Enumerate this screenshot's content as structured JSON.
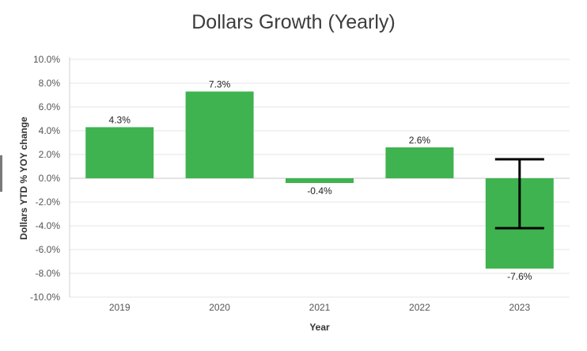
{
  "chart_data": {
    "type": "bar",
    "title": "Dollars Growth (Yearly)",
    "xlabel": "Year",
    "ylabel": "Dollars YTD % YOY change",
    "categories": [
      "2019",
      "2020",
      "2021",
      "2022",
      "2023"
    ],
    "values": [
      4.3,
      7.3,
      -0.4,
      2.6,
      -7.6
    ],
    "data_labels": [
      "4.3%",
      "7.3%",
      "-0.4%",
      "2.6%",
      "-7.6%"
    ],
    "ylim": [
      -10,
      10
    ],
    "yticks": [
      10,
      8,
      6,
      4,
      2,
      0,
      -2,
      -4,
      -6,
      -8,
      -10
    ],
    "ytick_labels": [
      "10.0%",
      "8.0%",
      "6.0%",
      "4.0%",
      "2.0%",
      "0.0%",
      "-2.0%",
      "-4.0%",
      "-6.0%",
      "-8.0%",
      "-10.0%"
    ],
    "grid": true,
    "bar_color": "#3fb34f",
    "error_bar": {
      "category": "2023",
      "upper": 1.6,
      "lower": -4.2,
      "color": "#000000"
    }
  }
}
